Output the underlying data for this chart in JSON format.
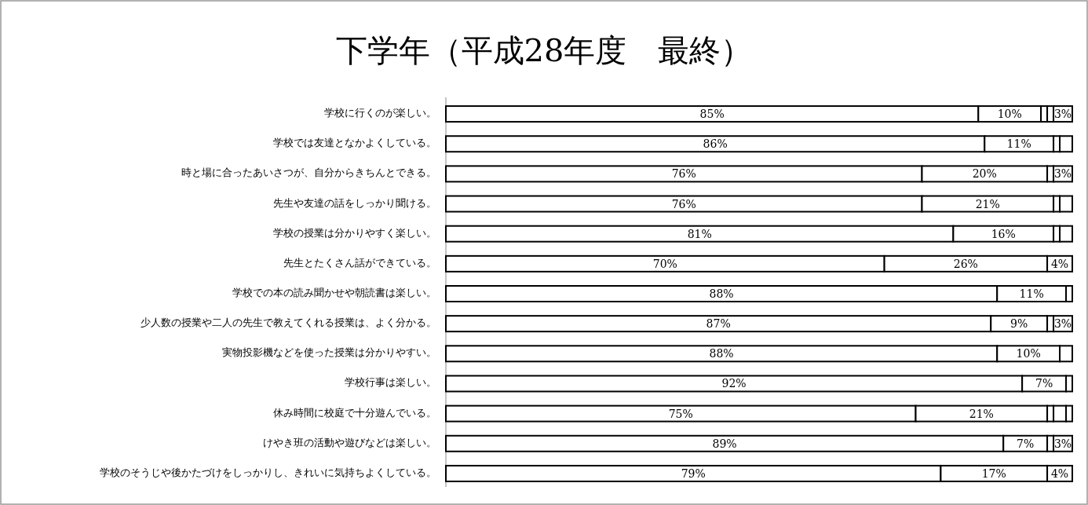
{
  "chart_data": {
    "type": "bar",
    "orientation": "horizontal",
    "stacked": true,
    "title": "下学年（平成28年度　最終）",
    "categories": [
      "学校に行くのが楽しい。",
      "学校では友達となかよくしている。",
      "時と場に合ったあいさつが、自分からきちんとできる。",
      "先生や友達の話をしっかり聞ける。",
      "学校の授業は分かりやすく楽しい。",
      "先生とたくさん話ができている。",
      "学校での本の読み聞かせや朝読書は楽しい。",
      "少人数の授業や二人の先生で教えてくれる授業は、よく分かる。",
      "実物投影機などを使った授業は分かりやすい。",
      "学校行事は楽しい。",
      "休み時間に校庭で十分遊んでいる。",
      "けやき班の活動や遊びなどは楽しい。",
      "学校のそうじや後かたづけをしっかりし、きれいに気持ちよくしている。"
    ],
    "series": [
      {
        "color": "#ffffff",
        "values": [
          85,
          86,
          76,
          76,
          81,
          70,
          88,
          87,
          88,
          92,
          75,
          89,
          79
        ],
        "value_labels": [
          "85%",
          "86%",
          "76%",
          "76%",
          "81%",
          "70%",
          "88%",
          "87%",
          "88%",
          "92%",
          "75%",
          "89%",
          "79%"
        ]
      },
      {
        "color": "#ffffff",
        "values": [
          10,
          11,
          20,
          21,
          16,
          26,
          11,
          9,
          10,
          7,
          21,
          7,
          17
        ],
        "value_labels": [
          "10%",
          "11%",
          "20%",
          "21%",
          "16%",
          "26%",
          "11%",
          "9%",
          "10%",
          "7%",
          "21%",
          "7%",
          "17%"
        ]
      },
      {
        "color": "#ffffff",
        "values": [
          1,
          0,
          1,
          0,
          0,
          0,
          1,
          1,
          0,
          1,
          1,
          0,
          0
        ],
        "value_labels": [
          null,
          null,
          null,
          null,
          null,
          null,
          null,
          null,
          null,
          null,
          null,
          null,
          null
        ]
      },
      {
        "color": "#ffffff",
        "values": [
          1,
          1,
          0,
          1,
          1,
          0,
          0,
          0,
          0,
          0,
          2,
          1,
          0
        ],
        "value_labels": [
          null,
          null,
          null,
          null,
          null,
          null,
          null,
          null,
          null,
          null,
          null,
          null,
          null
        ]
      },
      {
        "color": "#ffffff",
        "values": [
          3,
          2,
          3,
          2,
          2,
          4,
          0,
          3,
          2,
          0,
          1,
          3,
          4
        ],
        "value_labels": [
          "3%",
          null,
          "3%",
          null,
          null,
          "4%",
          null,
          "3%",
          null,
          null,
          null,
          "3%",
          "4%"
        ]
      }
    ]
  }
}
